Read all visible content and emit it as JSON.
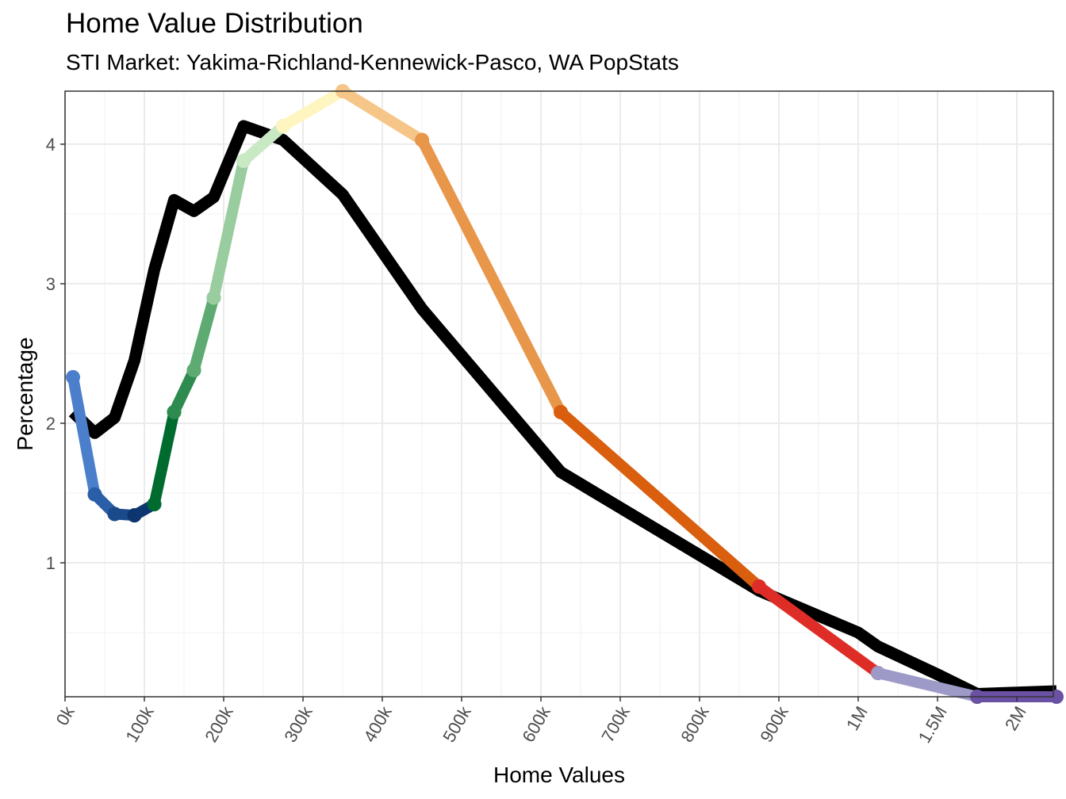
{
  "chart_data": {
    "type": "line",
    "title": "Home Value Distribution",
    "subtitle": "STI Market: Yakima-Richland-Kennewick-Pasco, WA PopStats",
    "xlabel": "Home Values",
    "ylabel": "Percentage",
    "x_ticks": [
      "0k",
      "100k",
      "200k",
      "300k",
      "400k",
      "500k",
      "600k",
      "700k",
      "800k",
      "900k",
      "1M",
      "1.5M",
      "2M"
    ],
    "y_ticks": [
      1,
      2,
      3,
      4
    ],
    "ylim": [
      0.04,
      4.38
    ],
    "grid": true,
    "series": [
      {
        "color": "#000000",
        "points": [
          {
            "x": "10k",
            "y": 2.08
          },
          {
            "x": "37.5k",
            "y": 1.93
          },
          {
            "x": "62.5k",
            "y": 2.04
          },
          {
            "x": "87.5k",
            "y": 2.45
          },
          {
            "x": "112.5k",
            "y": 3.1
          },
          {
            "x": "137.5k",
            "y": 3.6
          },
          {
            "x": "162.5k",
            "y": 3.52
          },
          {
            "x": "187.5k",
            "y": 3.62
          },
          {
            "x": "225k",
            "y": 4.13
          },
          {
            "x": "275k",
            "y": 4.03
          },
          {
            "x": "350k",
            "y": 3.64
          },
          {
            "x": "450k",
            "y": 2.82
          },
          {
            "x": "625k",
            "y": 1.65
          },
          {
            "x": "875k",
            "y": 0.8
          },
          {
            "x": "1M",
            "y": 0.5
          },
          {
            "x": "1.125M",
            "y": 0.4
          },
          {
            "x": "1.5M",
            "y": 0.2
          },
          {
            "x": "1.75M",
            "y": 0.06
          },
          {
            "x": "2M",
            "y": 0.07
          },
          {
            "x": "2.25M",
            "y": 0.08
          }
        ]
      },
      {
        "segments": [
          {
            "color": "#4B7FCC",
            "points": [
              {
                "x": "10k",
                "y": 2.33
              },
              {
                "x": "37.5k",
                "y": 1.49
              }
            ]
          },
          {
            "color": "#2B5EA8",
            "points": [
              {
                "x": "37.5k",
                "y": 1.49
              },
              {
                "x": "62.5k",
                "y": 1.35
              }
            ]
          },
          {
            "color": "#1A4A8A",
            "points": [
              {
                "x": "62.5k",
                "y": 1.35
              },
              {
                "x": "87.5k",
                "y": 1.34
              }
            ]
          },
          {
            "color": "#0D3570",
            "points": [
              {
                "x": "87.5k",
                "y": 1.34
              },
              {
                "x": "112.5k",
                "y": 1.42
              }
            ]
          },
          {
            "color": "#006B2E",
            "points": [
              {
                "x": "112.5k",
                "y": 1.42
              },
              {
                "x": "137.5k",
                "y": 2.08
              }
            ]
          },
          {
            "color": "#2E8B4F",
            "points": [
              {
                "x": "137.5k",
                "y": 2.08
              },
              {
                "x": "162.5k",
                "y": 2.38
              }
            ]
          },
          {
            "color": "#5DAA72",
            "points": [
              {
                "x": "162.5k",
                "y": 2.38
              },
              {
                "x": "187.5k",
                "y": 2.9
              }
            ]
          },
          {
            "color": "#99CC9E",
            "points": [
              {
                "x": "187.5k",
                "y": 2.9
              },
              {
                "x": "225k",
                "y": 3.88
              }
            ]
          },
          {
            "color": "#C9E8C4",
            "points": [
              {
                "x": "225k",
                "y": 3.88
              },
              {
                "x": "275k",
                "y": 4.13
              }
            ]
          },
          {
            "color": "#FEF5C0",
            "points": [
              {
                "x": "275k",
                "y": 4.13
              },
              {
                "x": "350k",
                "y": 4.38
              }
            ]
          },
          {
            "color": "#F5C688",
            "points": [
              {
                "x": "350k",
                "y": 4.38
              },
              {
                "x": "450k",
                "y": 4.03
              }
            ]
          },
          {
            "color": "#E8964A",
            "points": [
              {
                "x": "450k",
                "y": 4.03
              },
              {
                "x": "625k",
                "y": 2.08
              }
            ]
          },
          {
            "color": "#D95F0E",
            "points": [
              {
                "x": "625k",
                "y": 2.08
              },
              {
                "x": "875k",
                "y": 0.83
              }
            ]
          },
          {
            "color": "#DE2D26",
            "points": [
              {
                "x": "875k",
                "y": 0.83
              },
              {
                "x": "1.125M",
                "y": 0.21
              }
            ]
          },
          {
            "color": "#9E9AC8",
            "points": [
              {
                "x": "1.125M",
                "y": 0.21
              },
              {
                "x": "1.75M",
                "y": 0.04
              }
            ]
          },
          {
            "color": "#6A51A3",
            "points": [
              {
                "x": "1.75M",
                "y": 0.04
              },
              {
                "x": "2.25M",
                "y": 0.04
              }
            ]
          }
        ]
      }
    ]
  }
}
